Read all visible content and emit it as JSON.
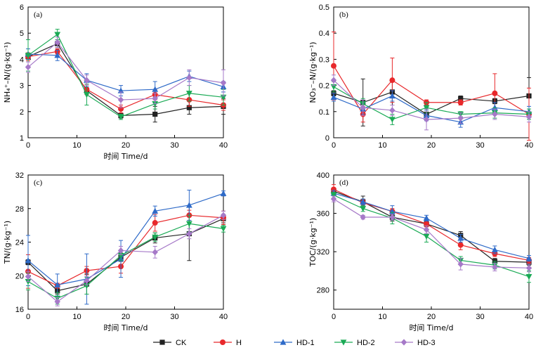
{
  "chart_data": [
    {
      "type": "line",
      "panel_label": "(a)",
      "xlabel": "时间 Time/d",
      "ylabel": "NH₄⁺–N/(g·kg⁻¹)",
      "xlim": [
        0,
        40
      ],
      "ylim": [
        1,
        6
      ],
      "xticks": [
        0,
        10,
        20,
        30,
        40
      ],
      "yticks": [
        1,
        2,
        3,
        4,
        5,
        6
      ],
      "x": [
        0,
        6,
        12,
        19,
        26,
        33,
        40
      ],
      "series": [
        {
          "name": "CK",
          "values": [
            4.1,
            4.6,
            2.8,
            1.85,
            1.9,
            2.15,
            2.2
          ],
          "errors": [
            0.1,
            0.15,
            0.1,
            0.1,
            0.3,
            0.25,
            0.3
          ]
        },
        {
          "name": "H",
          "values": [
            4.1,
            4.3,
            2.85,
            2.1,
            2.65,
            2.45,
            2.25
          ],
          "errors": [
            0.15,
            0.1,
            0.2,
            0.15,
            0.2,
            0.25,
            0.2
          ]
        },
        {
          "name": "HD-1",
          "values": [
            4.2,
            4.15,
            3.2,
            2.8,
            2.85,
            3.35,
            2.95
          ],
          "errors": [
            0.2,
            0.2,
            0.25,
            0.2,
            0.3,
            0.2,
            0.2
          ]
        },
        {
          "name": "HD-2",
          "values": [
            4.15,
            4.95,
            2.65,
            1.8,
            2.3,
            2.7,
            2.55
          ],
          "errors": [
            0.6,
            0.2,
            0.4,
            0.1,
            0.2,
            0.3,
            0.3
          ]
        },
        {
          "name": "HD-3",
          "values": [
            3.7,
            4.65,
            3.2,
            2.45,
            2.5,
            3.3,
            3.1
          ],
          "errors": [
            0.2,
            0.2,
            0.2,
            0.3,
            0.2,
            0.3,
            0.5
          ]
        }
      ]
    },
    {
      "type": "line",
      "panel_label": "(b)",
      "xlabel": "",
      "ylabel": "NO₃⁻–N/(g·kg⁻¹)",
      "xlim": [
        0,
        40
      ],
      "ylim": [
        0,
        0.5
      ],
      "xticks": [
        0,
        10,
        20,
        30,
        40
      ],
      "yticks": [
        0,
        0.1,
        0.2,
        0.3,
        0.4,
        0.5
      ],
      "x": [
        0,
        6,
        12,
        19,
        26,
        33,
        40
      ],
      "series": [
        {
          "name": "CK",
          "values": [
            0.17,
            0.135,
            0.175,
            0.09,
            0.15,
            0.14,
            0.16
          ],
          "errors": [
            0.01,
            0.09,
            0.05,
            0.02,
            0.01,
            0.01,
            0.07
          ]
        },
        {
          "name": "H",
          "values": [
            0.275,
            0.09,
            0.22,
            0.135,
            0.135,
            0.17,
            0.09
          ],
          "errors": [
            0.13,
            0.03,
            0.085,
            0.01,
            0.01,
            0.075,
            0.1
          ]
        },
        {
          "name": "HD-1",
          "values": [
            0.155,
            0.11,
            0.16,
            0.085,
            0.06,
            0.115,
            0.1
          ],
          "errors": [
            0.015,
            0.02,
            0.02,
            0.02,
            0.02,
            0.02,
            0.02
          ]
        },
        {
          "name": "HD-2",
          "values": [
            0.195,
            0.13,
            0.07,
            0.115,
            0.09,
            0.095,
            0.09
          ],
          "errors": [
            0.02,
            0.02,
            0.02,
            0.02,
            0.01,
            0.02,
            0.02
          ]
        },
        {
          "name": "HD-3",
          "values": [
            0.22,
            0.115,
            0.105,
            0.07,
            0.075,
            0.09,
            0.08
          ],
          "errors": [
            0.02,
            0.03,
            0.02,
            0.04,
            0.02,
            0.02,
            0.02
          ]
        }
      ]
    },
    {
      "type": "line",
      "panel_label": "(c)",
      "xlabel": "时间 Time/d",
      "ylabel": "TN/(g·kg⁻¹)",
      "xlim": [
        0,
        40
      ],
      "ylim": [
        16,
        32
      ],
      "xticks": [
        0,
        10,
        20,
        30,
        40
      ],
      "yticks": [
        16,
        20,
        24,
        28,
        32
      ],
      "x": [
        0,
        6,
        12,
        19,
        26,
        33,
        40
      ],
      "series": [
        {
          "name": "CK",
          "values": [
            21.6,
            18.2,
            19.0,
            22.2,
            24.5,
            25.0,
            26.8
          ],
          "errors": [
            0.3,
            0.4,
            1.2,
            0.5,
            0.6,
            3.2,
            0.5
          ]
        },
        {
          "name": "H",
          "values": [
            20.5,
            18.8,
            20.6,
            21.1,
            26.3,
            27.2,
            26.9
          ],
          "errors": [
            2.0,
            0.3,
            0.5,
            0.8,
            1.0,
            0.6,
            0.8
          ]
        },
        {
          "name": "HD-1",
          "values": [
            21.8,
            18.9,
            19.6,
            22.0,
            27.7,
            28.4,
            29.8
          ],
          "errors": [
            3.0,
            1.3,
            3.0,
            2.2,
            0.6,
            1.8,
            0.3
          ]
        },
        {
          "name": "HD-2",
          "values": [
            19.3,
            17.3,
            18.8,
            22.4,
            24.6,
            26.2,
            25.6
          ],
          "errors": [
            1.0,
            0.7,
            1.0,
            0.6,
            0.5,
            1.0,
            0.4
          ]
        },
        {
          "name": "HD-3",
          "values": [
            19.9,
            16.9,
            19.4,
            23.0,
            22.8,
            25.0,
            27.2
          ],
          "errors": [
            0.6,
            0.5,
            0.5,
            0.5,
            0.7,
            0.6,
            0.5
          ]
        }
      ]
    },
    {
      "type": "line",
      "panel_label": "(d)",
      "xlabel": "时间 Time/d",
      "ylabel": "TOC/(g·kg⁻¹)",
      "xlim": [
        0,
        40
      ],
      "ylim": [
        260,
        400
      ],
      "xticks": [
        0,
        10,
        20,
        30,
        40
      ],
      "yticks": [
        280,
        320,
        360,
        400
      ],
      "x": [
        0,
        6,
        12,
        19,
        26,
        33,
        40
      ],
      "series": [
        {
          "name": "CK",
          "values": [
            383,
            372,
            356,
            349,
            337,
            310,
            309
          ],
          "errors": [
            3,
            6,
            4,
            3,
            4,
            3,
            3
          ]
        },
        {
          "name": "H",
          "values": [
            385,
            371,
            362,
            349,
            327,
            318,
            311
          ],
          "errors": [
            5,
            3,
            3,
            3,
            5,
            3,
            3
          ]
        },
        {
          "name": "HD-1",
          "values": [
            381,
            372,
            362,
            355,
            334,
            322,
            313
          ],
          "errors": [
            3,
            3,
            6,
            3,
            4,
            4,
            3
          ]
        },
        {
          "name": "HD-2",
          "values": [
            379,
            365,
            355,
            336,
            311,
            306,
            294
          ],
          "errors": [
            3,
            3,
            6,
            6,
            4,
            4,
            6
          ]
        },
        {
          "name": "HD-3",
          "values": [
            375,
            356,
            356,
            343,
            307,
            304,
            303
          ],
          "errors": [
            3,
            2,
            3,
            4,
            6,
            4,
            4
          ]
        }
      ]
    }
  ],
  "legend": [
    {
      "name": "CK",
      "color": "#222222",
      "marker": "square"
    },
    {
      "name": "H",
      "color": "#e8282b",
      "marker": "circle"
    },
    {
      "name": "HD-1",
      "color": "#2e6ac8",
      "marker": "triangle-up"
    },
    {
      "name": "HD-2",
      "color": "#1aaa55",
      "marker": "triangle-down"
    },
    {
      "name": "HD-3",
      "color": "#a679c8",
      "marker": "diamond"
    }
  ]
}
